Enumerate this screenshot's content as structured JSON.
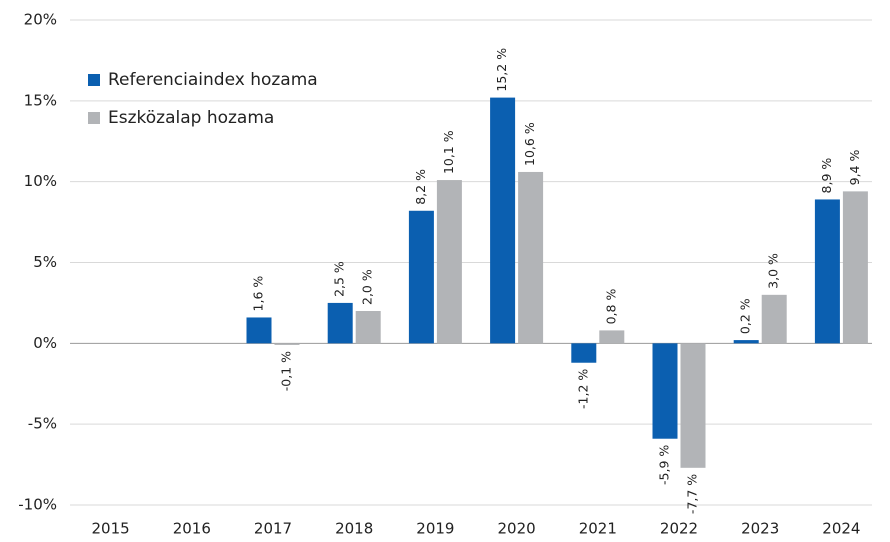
{
  "chart_data": {
    "type": "bar",
    "categories": [
      "2015",
      "2016",
      "2017",
      "2018",
      "2019",
      "2020",
      "2021",
      "2022",
      "2023",
      "2024"
    ],
    "series": [
      {
        "name": "Referenciaindex hozama",
        "color": "#0b5fb0",
        "values": [
          null,
          null,
          1.6,
          2.5,
          8.2,
          15.2,
          -1.2,
          -5.9,
          0.2,
          8.9
        ],
        "value_labels": [
          null,
          null,
          "1,6 %",
          "2,5 %",
          "8,2 %",
          "15,2 %",
          "-1,2 %",
          "-5,9 %",
          "0,2 %",
          "8,9 %"
        ]
      },
      {
        "name": "Eszközalap hozama",
        "color": "#b2b4b7",
        "values": [
          null,
          null,
          -0.1,
          2.0,
          10.1,
          10.6,
          0.8,
          -7.7,
          3.0,
          9.4
        ],
        "value_labels": [
          null,
          null,
          "-0,1 %",
          "2,0 %",
          "10,1 %",
          "10,6 %",
          "0,8 %",
          "-7,7 %",
          "3,0 %",
          "9,4 %"
        ]
      }
    ],
    "ylim": [
      -10,
      20
    ],
    "yticks": [
      {
        "value": -10,
        "label": "-10%"
      },
      {
        "value": -5,
        "label": "-5%"
      },
      {
        "value": 0,
        "label": "0%"
      },
      {
        "value": 5,
        "label": "5%"
      },
      {
        "value": 10,
        "label": "10%"
      },
      {
        "value": 15,
        "label": "15%"
      },
      {
        "value": 20,
        "label": "20%"
      }
    ],
    "grid": true,
    "legend": "upper left"
  }
}
